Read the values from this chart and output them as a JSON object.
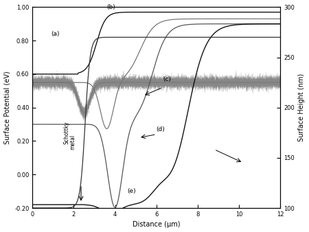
{
  "xlabel": "Distance (μm)",
  "ylabel_left": "Surface Potential (eV)",
  "ylabel_right": "Surface Height (nm)",
  "xlim": [
    0,
    12
  ],
  "ylim_left": [
    -0.2,
    1.0
  ],
  "ylim_right": [
    100,
    300
  ],
  "xticks": [
    0,
    2,
    4,
    6,
    8,
    10,
    12
  ],
  "yticks_left": [
    -0.2,
    0.0,
    0.2,
    0.4,
    0.6,
    0.8,
    1.0
  ],
  "yticks_right": [
    100,
    150,
    200,
    250,
    300
  ],
  "background_color": "#ffffff"
}
